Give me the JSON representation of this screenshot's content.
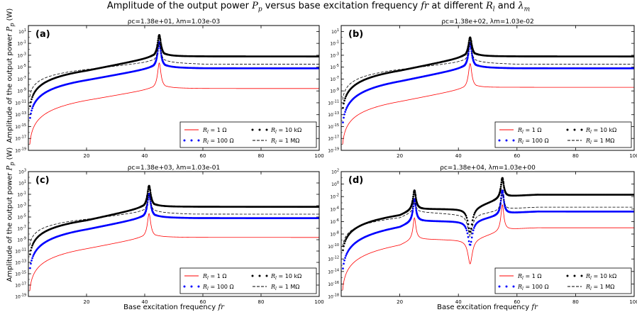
{
  "figure": {
    "title_html": "Amplitude of the output power <span class=\"i\">P<sub style=\"font-size:9px\">p</sub></span> versus base excitation frequency <span class=\"i\">fr</span> at different <span class=\"i\">R<sub style=\"font-size:9px\">l</sub></span> and <span class=\"i\">λ<sub style=\"font-size:9px\">m</sub></span>",
    "ylabel_html": "Amplitude of the output power <span class=\"i\">P<sub style=\"font-size:8px\">p</sub></span> (W)",
    "xlabel_html": "Base excitation frequency <span class=\"i\">fr</span>"
  },
  "chart_data": [
    {
      "type": "line",
      "panel_label": "(a)",
      "subtitle": "ρc=1.38e+01, λm=1.03e-03",
      "xlim": [
        0,
        100
      ],
      "ylim_log10": [
        -19,
        2
      ],
      "y_scale": "log",
      "xticks": [
        20,
        40,
        60,
        80,
        100
      ],
      "yticks_log10": [
        1,
        -1,
        -3,
        -5,
        -7,
        -9,
        -11,
        -13,
        -15,
        -17,
        -19
      ],
      "yticklabels": [
        "10^1",
        "10^-1",
        "10^-3",
        "10^-5",
        "10^-7",
        "10^-9",
        "10^-11",
        "10^-13",
        "10^-15",
        "10^-17",
        "10^-19"
      ],
      "resonances_x": [
        45
      ],
      "legend_position": "lower-right",
      "series": [
        {
          "name": "Rl = 1 Ω",
          "style": "line",
          "color": "#ff0000",
          "anchor_log10": {
            "x0": -18.0,
            "x20": -10.6,
            "x40": -8.5,
            "x43": -7.4,
            "peak": -4.3,
            "x47": -7.4,
            "x60": -8.6,
            "x100": -8.6
          }
        },
        {
          "name": "Rl = 100 Ω",
          "style": "dots",
          "color": "#0000ff",
          "anchor_log10": {
            "x0": -14.0,
            "x20": -7.2,
            "x40": -5.0,
            "x43": -3.8,
            "peak": -0.8,
            "x47": -3.8,
            "x60": -5.2,
            "x100": -5.2
          }
        },
        {
          "name": "Rl = 10 kΩ",
          "style": "dots",
          "color": "#000000",
          "anchor_log10": {
            "x0": -12.0,
            "x20": -5.6,
            "x40": -3.2,
            "x43": -2.0,
            "peak": 0.4,
            "x47": -2.0,
            "x60": -3.2,
            "x100": -3.2
          }
        },
        {
          "name": "Rl = 1 MΩ",
          "style": "dashed",
          "color": "#000000",
          "anchor_log10": {
            "x0": -10.0,
            "x20": -5.4,
            "x40": -4.0,
            "x43": -3.0,
            "peak": -1.0,
            "x47": -3.0,
            "x60": -4.5,
            "x100": -4.5
          }
        }
      ]
    },
    {
      "type": "line",
      "panel_label": "(b)",
      "subtitle": "ρc=1.38e+02, λm=1.03e-02",
      "xlim": [
        0,
        100
      ],
      "ylim_log10": [
        -19,
        2
      ],
      "y_scale": "log",
      "xticks": [
        20,
        40,
        60,
        80,
        100
      ],
      "yticks_log10": [
        1,
        -1,
        -3,
        -5,
        -7,
        -9,
        -11,
        -13,
        -15,
        -17,
        -19
      ],
      "yticklabels": [
        "10^1",
        "10^-1",
        "10^-3",
        "10^-5",
        "10^-7",
        "10^-9",
        "10^-11",
        "10^-13",
        "10^-15",
        "10^-17",
        "10^-19"
      ],
      "resonances_x": [
        44
      ],
      "legend_position": "lower-right",
      "series": [
        {
          "name": "Rl = 1 Ω",
          "style": "line",
          "color": "#ff0000",
          "anchor_log10": {
            "x0": -18.0,
            "x20": -10.8,
            "x40": -8.5,
            "x43": -7.4,
            "peak": -4.4,
            "x47": -7.4,
            "x60": -8.4,
            "x100": -8.4
          }
        },
        {
          "name": "Rl = 100 Ω",
          "style": "dots",
          "color": "#0000ff",
          "anchor_log10": {
            "x0": -14.8,
            "x20": -7.4,
            "x40": -5.0,
            "x43": -3.8,
            "peak": -0.9,
            "x47": -3.8,
            "x60": -5.2,
            "x100": -5.2
          }
        },
        {
          "name": "Rl = 10 kΩ",
          "style": "dots",
          "color": "#000000",
          "anchor_log10": {
            "x0": -12.3,
            "x20": -5.6,
            "x40": -3.2,
            "x43": -2.0,
            "peak": 0.0,
            "x47": -2.0,
            "x60": -3.2,
            "x100": -3.2
          }
        },
        {
          "name": "Rl = 1 MΩ",
          "style": "dashed",
          "color": "#000000",
          "anchor_log10": {
            "x0": -10.5,
            "x20": -5.4,
            "x40": -4.0,
            "x43": -3.0,
            "peak": -1.0,
            "x47": -3.0,
            "x60": -4.5,
            "x100": -4.5
          }
        }
      ]
    },
    {
      "type": "line",
      "panel_label": "(c)",
      "subtitle": "ρc=1.38e+03, λm=1.03e-01",
      "xlim": [
        0,
        100
      ],
      "ylim_log10": [
        -19,
        3
      ],
      "y_scale": "log",
      "xticks": [
        20,
        40,
        60,
        80,
        100
      ],
      "yticks_log10": [
        3,
        1,
        -1,
        -3,
        -5,
        -7,
        -9,
        -11,
        -13,
        -15,
        -17,
        -19
      ],
      "yticklabels": [
        "10^3",
        "10^1",
        "10^-1",
        "10^-3",
        "10^-5",
        "10^-7",
        "10^-9",
        "10^-11",
        "10^-13",
        "10^-15",
        "10^-17",
        "10^-19"
      ],
      "resonances_x": [
        41.5
      ],
      "legend_position": "lower-right",
      "series": [
        {
          "name": "Rl = 1 Ω",
          "style": "line",
          "color": "#ff0000",
          "anchor_log10": {
            "x0": -18.0,
            "x20": -10.6,
            "x40": -8.5,
            "x43": -7.4,
            "peak": -4.4,
            "x47": -7.4,
            "x60": -8.6,
            "x100": -8.6
          }
        },
        {
          "name": "Rl = 100 Ω",
          "style": "dots",
          "color": "#0000ff",
          "anchor_log10": {
            "x0": -14.5,
            "x20": -7.2,
            "x40": -5.0,
            "x43": -3.8,
            "peak": -0.9,
            "x47": -3.8,
            "x60": -5.2,
            "x100": -5.2
          }
        },
        {
          "name": "Rl = 10 kΩ",
          "style": "dots",
          "color": "#000000",
          "anchor_log10": {
            "x0": -12.0,
            "x20": -5.6,
            "x40": -3.2,
            "x43": -2.0,
            "peak": 0.5,
            "x47": -2.0,
            "x60": -3.2,
            "x100": -3.2
          }
        },
        {
          "name": "Rl = 1 MΩ",
          "style": "dashed",
          "color": "#000000",
          "anchor_log10": {
            "x0": -10.0,
            "x20": -5.4,
            "x40": -4.0,
            "x43": -3.0,
            "peak": -1.2,
            "x47": -3.0,
            "x60": -4.5,
            "x100": -4.5
          }
        }
      ]
    },
    {
      "type": "line",
      "panel_label": "(d)",
      "subtitle": "ρc=1.38e+04, λm=1.03e+00",
      "xlim": [
        0,
        100
      ],
      "ylim_log10": [
        -18,
        2
      ],
      "y_scale": "log",
      "xticks": [
        20,
        40,
        60,
        80,
        100
      ],
      "yticks_log10": [
        2,
        0,
        -2,
        -4,
        -6,
        -8,
        -10,
        -12,
        -14,
        -16,
        -18
      ],
      "yticklabels": [
        "10^2",
        "10^0",
        "10^-2",
        "10^-4",
        "10^-6",
        "10^-8",
        "10^-10",
        "10^-12",
        "10^-14",
        "10^-16",
        "10^-18"
      ],
      "resonances_x": [
        25,
        55
      ],
      "antiresonance_x": 44,
      "legend_position": "lower-right",
      "series": [
        {
          "name": "Rl = 1 Ω",
          "style": "line",
          "color": "#ff0000",
          "anchor_log10": {
            "x0": -17.0,
            "x20": -9.8,
            "peak1": -5.4,
            "x35": -9.0,
            "x44": -12.8,
            "peak2": -3.3,
            "x65": -7.0,
            "x100": -7.0
          }
        },
        {
          "name": "Rl = 100 Ω",
          "style": "dots",
          "color": "#0000ff",
          "anchor_log10": {
            "x0": -14.0,
            "x20": -6.9,
            "peak1": -2.4,
            "x35": -6.0,
            "x44": -9.8,
            "peak2": -1.0,
            "x65": -4.4,
            "x100": -4.4
          }
        },
        {
          "name": "Rl = 10 kΩ",
          "style": "dots",
          "color": "#000000",
          "anchor_log10": {
            "x0": -11.0,
            "x20": -5.0,
            "peak1": -1.0,
            "x35": -4.0,
            "x44": -7.7,
            "peak2": 1.0,
            "x65": -1.7,
            "x100": -1.7
          }
        },
        {
          "name": "Rl = 1 MΩ",
          "style": "dashed",
          "color": "#000000",
          "anchor_log10": {
            "x0": -10.0,
            "x20": -5.4,
            "peak1": -2.8,
            "x35": -5.0,
            "x44": -8.4,
            "peak2": -1.5,
            "x65": -3.7,
            "x100": -3.7
          }
        }
      ]
    }
  ]
}
